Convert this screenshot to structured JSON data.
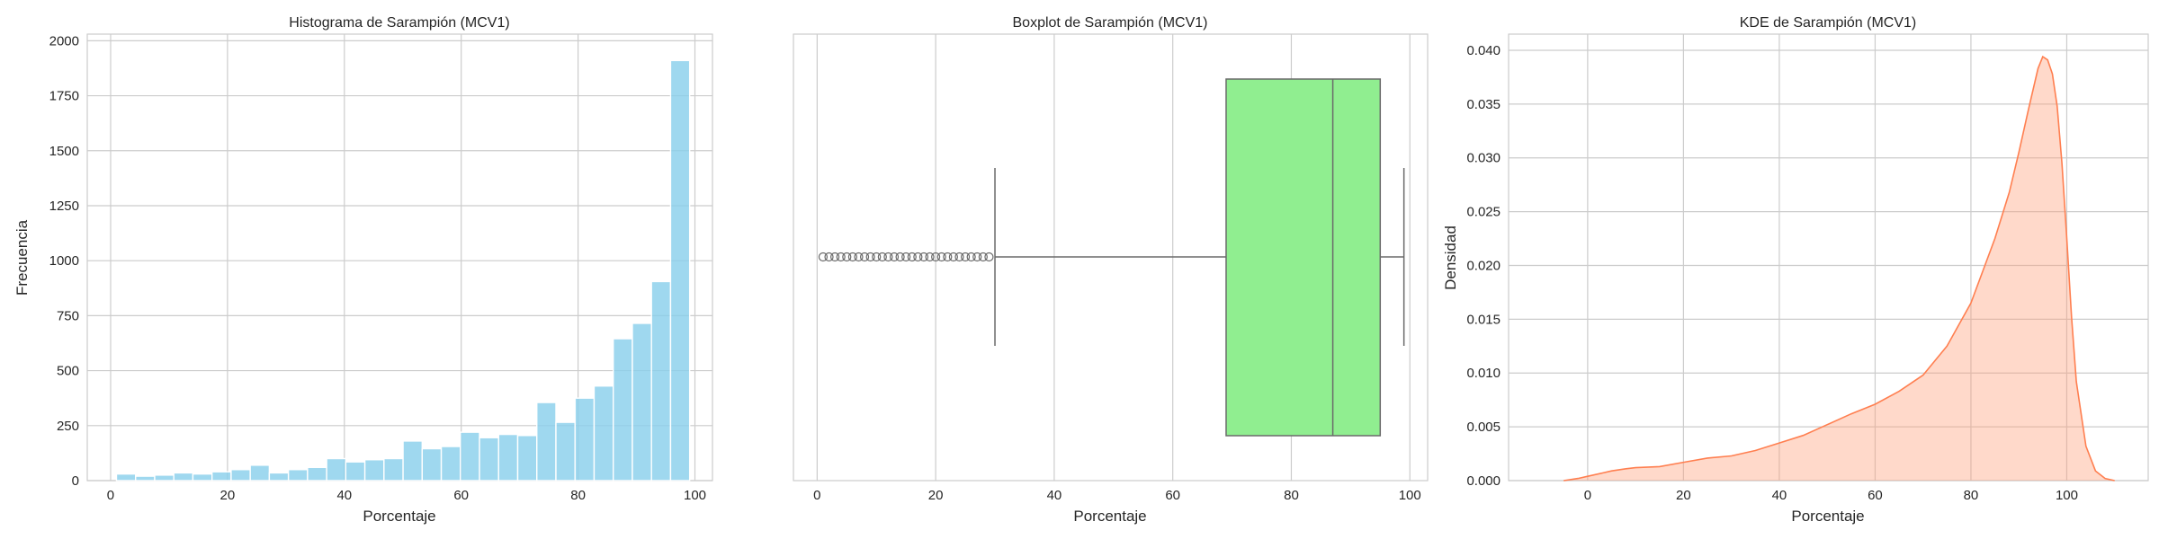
{
  "chart_data": [
    {
      "type": "bar",
      "subtype": "histogram",
      "title": "Histograma de Sarampión (MCV1)",
      "xlabel": "Porcentaje",
      "ylabel": "Frecuencia",
      "xlim": [
        -4,
        103
      ],
      "ylim": [
        0,
        2030
      ],
      "xticks": [
        0,
        20,
        40,
        60,
        80,
        100
      ],
      "xtick_labels": [
        "0",
        "20",
        "40",
        "60",
        "80",
        "100"
      ],
      "yticks": [
        0,
        250,
        500,
        750,
        1000,
        1250,
        1500,
        1750,
        2000
      ],
      "ytick_labels": [
        "0",
        "250",
        "500",
        "750",
        "1000",
        "1250",
        "1500",
        "1750",
        "2000"
      ],
      "bin_start": 1,
      "bin_width": 3.27,
      "values": [
        30,
        20,
        25,
        35,
        30,
        40,
        50,
        70,
        35,
        50,
        60,
        100,
        85,
        95,
        100,
        180,
        145,
        155,
        220,
        195,
        210,
        205,
        355,
        265,
        375,
        430,
        645,
        715,
        905,
        1910
      ],
      "color": "#87ceeb",
      "grid": true
    },
    {
      "type": "boxplot",
      "title": "Boxplot de Sarampión (MCV1)",
      "xlabel": "Porcentaje",
      "xlim": [
        -4,
        103
      ],
      "xticks": [
        0,
        20,
        40,
        60,
        80,
        100
      ],
      "xtick_labels": [
        "0",
        "20",
        "40",
        "60",
        "80",
        "100"
      ],
      "whisker_low": 30,
      "q1": 69,
      "median": 87,
      "q3": 95,
      "whisker_high": 99,
      "outliers": [
        1,
        2,
        3,
        4,
        5,
        6,
        7,
        8,
        9,
        10,
        11,
        12,
        13,
        14,
        15,
        16,
        17,
        18,
        19,
        20,
        21,
        22,
        23,
        24,
        25,
        26,
        27,
        28,
        29
      ],
      "color": "#90ee90",
      "grid": true
    },
    {
      "type": "area",
      "subtype": "kde",
      "title": "KDE de Sarampión (MCV1)",
      "xlabel": "Porcentaje",
      "ylabel": "Densidad",
      "xlim": [
        -16.5,
        117
      ],
      "ylim": [
        0,
        0.0415
      ],
      "xticks": [
        0,
        20,
        40,
        60,
        80,
        100
      ],
      "xtick_labels": [
        "0",
        "20",
        "40",
        "60",
        "80",
        "100"
      ],
      "yticks": [
        0,
        0.005,
        0.01,
        0.015,
        0.02,
        0.025,
        0.03,
        0.035,
        0.04
      ],
      "ytick_labels": [
        "0.000",
        "0.005",
        "0.010",
        "0.015",
        "0.020",
        "0.025",
        "0.030",
        "0.035",
        "0.040"
      ],
      "x": [
        -5,
        -2,
        0,
        3,
        5,
        8,
        10,
        15,
        20,
        25,
        30,
        35,
        40,
        45,
        50,
        55,
        60,
        65,
        70,
        75,
        80,
        85,
        88,
        90,
        92,
        94,
        95,
        96,
        97,
        98,
        99,
        100,
        101,
        102,
        104,
        106,
        108,
        110
      ],
      "y": [
        0,
        0.0002,
        0.0004,
        0.0007,
        0.0009,
        0.0011,
        0.0012,
        0.0013,
        0.0017,
        0.0021,
        0.0023,
        0.0028,
        0.0035,
        0.0042,
        0.0052,
        0.0062,
        0.0071,
        0.0083,
        0.0098,
        0.0125,
        0.0165,
        0.0225,
        0.0268,
        0.0305,
        0.0345,
        0.0383,
        0.0394,
        0.0391,
        0.0378,
        0.0348,
        0.0295,
        0.0225,
        0.0152,
        0.0092,
        0.0032,
        0.0009,
        0.0002,
        0
      ],
      "line_color": "#ff7f50",
      "fill_color": "#ffa07a",
      "grid": true
    }
  ]
}
